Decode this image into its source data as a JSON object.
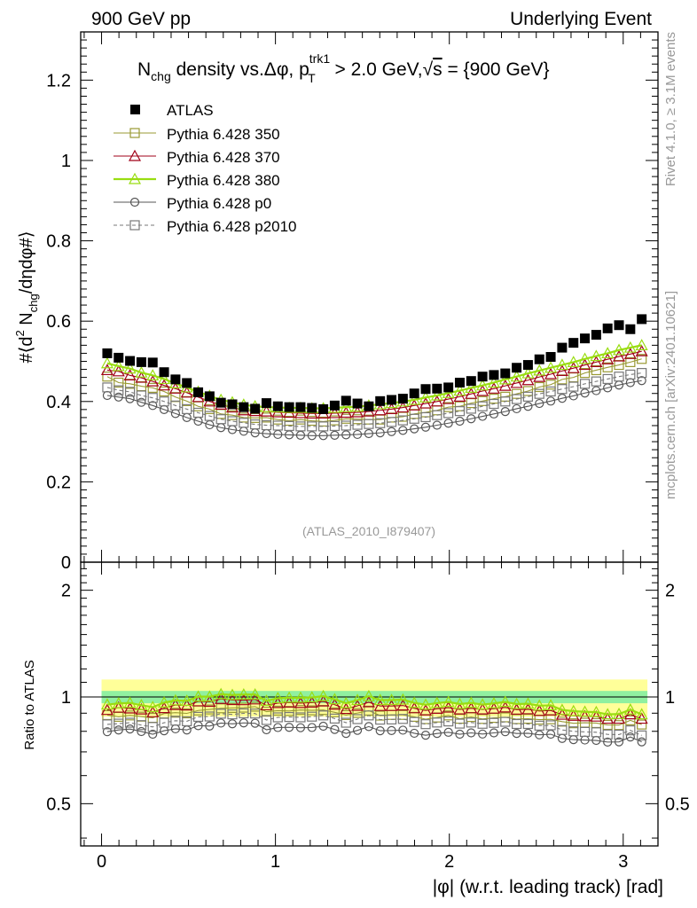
{
  "header": {
    "left": "900 GeV pp",
    "right": "Underlying Event"
  },
  "side_labels": {
    "rivet": "Rivet 4.1.0, ≥ 3.1M events",
    "source": "mcplots.cern.ch [arXiv:2401.10621]"
  },
  "chart_data": {
    "type": "scatter",
    "title": "N_chg density vs. Δφ, p_T^trk1 > 2.0 GeV, √s = {900 GeV}",
    "title_parts": {
      "n": "N",
      "chg": "chg",
      "mid": " density vs.Δφ, p",
      "sup": "trk1",
      "sub": "T",
      "gt": " > 2.0 GeV,",
      "sqrt": "√",
      "s": "s",
      "tail": " = {900 GeV}"
    },
    "analysis_tag": "(ATLAS_2010_I879407)",
    "ylabel": "#⟨d² N_chg/dηdφ#⟩",
    "ylabel_parts": {
      "pre": "#⟨d",
      "sup": "2",
      "n": " N",
      "sub": "chg",
      "post": "/dηdφ#⟩"
    },
    "xlabel": "|φ| (w.r.t. leading track) [rad]",
    "ratio_ylabel": "Ratio to ATLAS",
    "xlim": [
      -0.12,
      3.2
    ],
    "ylim": [
      0,
      1.32
    ],
    "ratio_ylim": [
      0.38,
      2.4
    ],
    "xticks": [
      0,
      1,
      2,
      3
    ],
    "xtick_labels": [
      "0",
      "1",
      "2",
      "3"
    ],
    "yticks": [
      0,
      0.2,
      0.4,
      0.6,
      0.8,
      1,
      1.2
    ],
    "ytick_labels": [
      "0",
      "0.2",
      "0.4",
      "0.6",
      "0.8",
      "1",
      "1.2"
    ],
    "ratio_yticks": [
      0.5,
      1,
      2
    ],
    "ratio_ytick_labels": [
      "0.5",
      "1",
      "2"
    ],
    "bins": 48,
    "x_first": 0.0327,
    "x_step": 0.0654,
    "data": {
      "name": "ATLAS",
      "color": "#000000",
      "values": [
        0.52,
        0.509,
        0.501,
        0.498,
        0.497,
        0.473,
        0.455,
        0.446,
        0.423,
        0.413,
        0.397,
        0.393,
        0.386,
        0.382,
        0.396,
        0.388,
        0.386,
        0.386,
        0.384,
        0.381,
        0.39,
        0.402,
        0.395,
        0.388,
        0.401,
        0.404,
        0.407,
        0.42,
        0.431,
        0.432,
        0.435,
        0.447,
        0.451,
        0.462,
        0.466,
        0.47,
        0.484,
        0.491,
        0.505,
        0.511,
        0.534,
        0.546,
        0.557,
        0.566,
        0.582,
        0.59,
        0.58,
        0.605
      ]
    },
    "ratio_band": {
      "stat": [
        0.96,
        1.04
      ],
      "total": [
        0.88,
        1.12
      ],
      "stat_color": "#90f0a0",
      "total_color": "#ffff99"
    },
    "series": [
      {
        "name": "Pythia 6.428 350",
        "color": "#999933",
        "marker": "square",
        "dashed": false,
        "values": [
          0.462,
          0.447,
          0.444,
          0.438,
          0.434,
          0.425,
          0.411,
          0.401,
          0.388,
          0.381,
          0.369,
          0.366,
          0.36,
          0.359,
          0.36,
          0.355,
          0.352,
          0.355,
          0.352,
          0.35,
          0.353,
          0.357,
          0.356,
          0.355,
          0.355,
          0.36,
          0.362,
          0.369,
          0.373,
          0.378,
          0.386,
          0.388,
          0.396,
          0.401,
          0.407,
          0.412,
          0.419,
          0.426,
          0.436,
          0.442,
          0.455,
          0.46,
          0.471,
          0.478,
          0.485,
          0.491,
          0.498,
          0.506
        ],
        "ratio": [
          0.889,
          0.879,
          0.887,
          0.88,
          0.873,
          0.898,
          0.903,
          0.899,
          0.916,
          0.922,
          0.929,
          0.931,
          0.933,
          0.939,
          0.909,
          0.915,
          0.913,
          0.919,
          0.917,
          0.919,
          0.905,
          0.889,
          0.901,
          0.915,
          0.886,
          0.89,
          0.89,
          0.879,
          0.866,
          0.875,
          0.887,
          0.868,
          0.878,
          0.867,
          0.873,
          0.876,
          0.866,
          0.868,
          0.863,
          0.865,
          0.852,
          0.843,
          0.846,
          0.844,
          0.834,
          0.833,
          0.859,
          0.836
        ]
      },
      {
        "name": "Pythia 6.428 370",
        "color": "#a00018",
        "marker": "triangle",
        "dashed": false,
        "values": [
          0.478,
          0.475,
          0.465,
          0.459,
          0.45,
          0.44,
          0.432,
          0.422,
          0.411,
          0.4,
          0.392,
          0.385,
          0.378,
          0.376,
          0.375,
          0.373,
          0.372,
          0.371,
          0.37,
          0.37,
          0.371,
          0.372,
          0.373,
          0.375,
          0.378,
          0.381,
          0.385,
          0.39,
          0.395,
          0.4,
          0.406,
          0.412,
          0.419,
          0.426,
          0.432,
          0.439,
          0.446,
          0.453,
          0.461,
          0.468,
          0.476,
          0.483,
          0.491,
          0.498,
          0.505,
          0.512,
          0.518,
          0.525
        ],
        "ratio": [
          0.919,
          0.933,
          0.928,
          0.922,
          0.905,
          0.93,
          0.949,
          0.946,
          0.972,
          0.969,
          0.987,
          0.98,
          0.979,
          0.984,
          0.947,
          0.961,
          0.964,
          0.961,
          0.964,
          0.971,
          0.951,
          0.925,
          0.944,
          0.966,
          0.943,
          0.943,
          0.946,
          0.929,
          0.916,
          0.926,
          0.933,
          0.922,
          0.929,
          0.922,
          0.927,
          0.934,
          0.921,
          0.923,
          0.913,
          0.916,
          0.891,
          0.885,
          0.882,
          0.88,
          0.868,
          0.868,
          0.893,
          0.868
        ]
      },
      {
        "name": "Pythia 6.428 380",
        "color": "#99dd11",
        "marker": "triangle",
        "dashed": false,
        "values": [
          0.495,
          0.488,
          0.482,
          0.472,
          0.465,
          0.456,
          0.445,
          0.435,
          0.424,
          0.414,
          0.404,
          0.398,
          0.392,
          0.388,
          0.386,
          0.385,
          0.384,
          0.384,
          0.383,
          0.383,
          0.384,
          0.386,
          0.387,
          0.39,
          0.393,
          0.396,
          0.4,
          0.404,
          0.41,
          0.415,
          0.421,
          0.427,
          0.434,
          0.44,
          0.447,
          0.455,
          0.462,
          0.47,
          0.477,
          0.484,
          0.491,
          0.498,
          0.506,
          0.513,
          0.52,
          0.528,
          0.534,
          0.54
        ],
        "ratio": [
          0.952,
          0.959,
          0.962,
          0.948,
          0.936,
          0.964,
          0.978,
          0.975,
          1.002,
          1.002,
          1.018,
          1.013,
          1.016,
          1.016,
          0.975,
          0.992,
          0.995,
          0.995,
          0.997,
          1.005,
          0.985,
          0.96,
          0.98,
          1.005,
          0.98,
          0.98,
          0.983,
          0.962,
          0.951,
          0.961,
          0.968,
          0.955,
          0.962,
          0.952,
          0.959,
          0.968,
          0.955,
          0.957,
          0.945,
          0.947,
          0.919,
          0.912,
          0.908,
          0.906,
          0.893,
          0.895,
          0.921,
          0.893
        ]
      },
      {
        "name": "Pythia 6.428 p0",
        "color": "#555555",
        "marker": "circle",
        "dashed": false,
        "values": [
          0.415,
          0.411,
          0.407,
          0.398,
          0.39,
          0.38,
          0.37,
          0.36,
          0.351,
          0.342,
          0.335,
          0.33,
          0.326,
          0.322,
          0.32,
          0.318,
          0.317,
          0.316,
          0.315,
          0.315,
          0.316,
          0.317,
          0.318,
          0.32,
          0.322,
          0.325,
          0.328,
          0.332,
          0.336,
          0.341,
          0.346,
          0.351,
          0.357,
          0.363,
          0.369,
          0.375,
          0.382,
          0.388,
          0.395,
          0.401,
          0.408,
          0.414,
          0.421,
          0.427,
          0.434,
          0.441,
          0.447,
          0.452
        ],
        "ratio": [
          0.798,
          0.807,
          0.812,
          0.799,
          0.785,
          0.803,
          0.813,
          0.807,
          0.83,
          0.828,
          0.844,
          0.84,
          0.845,
          0.843,
          0.808,
          0.82,
          0.821,
          0.819,
          0.82,
          0.827,
          0.81,
          0.789,
          0.805,
          0.825,
          0.803,
          0.804,
          0.806,
          0.79,
          0.78,
          0.789,
          0.795,
          0.785,
          0.792,
          0.786,
          0.792,
          0.798,
          0.789,
          0.79,
          0.782,
          0.785,
          0.764,
          0.758,
          0.756,
          0.754,
          0.746,
          0.747,
          0.771,
          0.747
        ]
      },
      {
        "name": "Pythia 6.428 p2010",
        "color": "#777777",
        "marker": "square",
        "dashed": true,
        "values": [
          0.435,
          0.428,
          0.424,
          0.415,
          0.409,
          0.4,
          0.39,
          0.381,
          0.372,
          0.364,
          0.356,
          0.351,
          0.347,
          0.343,
          0.341,
          0.34,
          0.339,
          0.338,
          0.338,
          0.338,
          0.339,
          0.34,
          0.342,
          0.344,
          0.346,
          0.349,
          0.353,
          0.357,
          0.361,
          0.366,
          0.371,
          0.376,
          0.382,
          0.388,
          0.394,
          0.4,
          0.406,
          0.412,
          0.419,
          0.425,
          0.431,
          0.437,
          0.444,
          0.45,
          0.456,
          0.462,
          0.467,
          0.471
        ],
        "ratio": [
          0.837,
          0.841,
          0.846,
          0.833,
          0.823,
          0.846,
          0.857,
          0.854,
          0.879,
          0.881,
          0.897,
          0.893,
          0.899,
          0.898,
          0.861,
          0.876,
          0.878,
          0.876,
          0.88,
          0.887,
          0.869,
          0.846,
          0.866,
          0.887,
          0.863,
          0.864,
          0.867,
          0.85,
          0.838,
          0.847,
          0.853,
          0.841,
          0.847,
          0.84,
          0.845,
          0.851,
          0.839,
          0.839,
          0.83,
          0.832,
          0.807,
          0.8,
          0.797,
          0.795,
          0.784,
          0.783,
          0.805,
          0.779
        ]
      }
    ]
  }
}
